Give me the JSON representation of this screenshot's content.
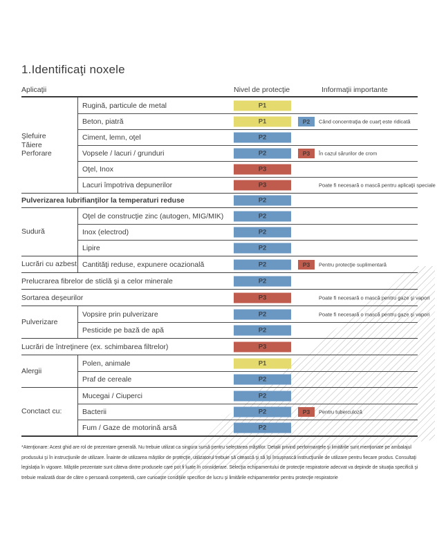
{
  "colors": {
    "p1": "#e4da6d",
    "p2": "#6b97c3",
    "p3": "#c05c4d",
    "line": "#3f3f3f",
    "hatch": "#d9d9d9"
  },
  "page": {
    "title": "1.Identificaţi noxele"
  },
  "table": {
    "headers": {
      "applications": "Aplicaţii",
      "protection": "Nivel de protecţie",
      "info": "Informaţii importante"
    },
    "sections": [
      {
        "label_lines": [
          "Şlefuire",
          "Tăiere",
          "Perforare"
        ],
        "rows": [
          {
            "label": "Rugină, particule de metal",
            "level": "P1"
          },
          {
            "label": "Beton, piatră",
            "level": "P1",
            "badge": "P2",
            "info": "Când concentraţia de cuarţ este ridicată"
          },
          {
            "label": "Ciment, lemn, oţel",
            "level": "P2"
          },
          {
            "label": "Vopsele / lacuri / grunduri",
            "level": "P2",
            "badge": "P3",
            "info": "În cazul sărurilor de crom"
          },
          {
            "label": "Oţel, Inox",
            "level": "P3"
          },
          {
            "label": "Lacuri împotriva depunerilor",
            "level": "P3",
            "info": "Poate fi necesară o mască pentru aplicaţii speciale"
          }
        ]
      },
      {
        "rows": [
          {
            "label": "Pulverizarea lubrifianţilor la temperaturi reduse",
            "level": "P2"
          }
        ]
      },
      {
        "label_lines": [
          "Sudură"
        ],
        "rows": [
          {
            "label": "Oţel de construcţie zinc (autogen, MIG/MIK)",
            "level": "P2"
          },
          {
            "label": "Inox (electrod)",
            "level": "P2"
          },
          {
            "label": "Lipire",
            "level": "P2"
          }
        ]
      },
      {
        "label_lines": [
          "Lucrări cu azbest"
        ],
        "rows": [
          {
            "label": "Cantităţi reduse, expunere ocazională",
            "level": "P2",
            "badge": "P3",
            "info": "Pentru protecţie suplimentară"
          }
        ]
      },
      {
        "rows": [
          {
            "label": "Prelucrarea fibrelor de sticlă şi a celor minerale",
            "level": "P2"
          }
        ]
      },
      {
        "rows": [
          {
            "label": "Sortarea deşeurilor",
            "level": "P3",
            "info": "Poate fi necesară o mască pentru gaze şi vapori"
          }
        ]
      },
      {
        "label_lines": [
          "Pulverizare"
        ],
        "rows": [
          {
            "label": "Vopsire prin pulverizare",
            "level": "P2",
            "info": "Poate fi necesară o mască pentru gaze şi vapori"
          },
          {
            "label": "Pesticide pe bază de apă",
            "level": "P2"
          }
        ]
      },
      {
        "rows": [
          {
            "label": "Lucrări de întreţinere (ex. schimbarea filtrelor)",
            "level": "P3"
          }
        ]
      },
      {
        "label_lines": [
          "Alergii"
        ],
        "rows": [
          {
            "label": "Polen, animale",
            "level": "P1"
          },
          {
            "label": "Praf de cereale",
            "level": "P2"
          }
        ]
      },
      {
        "label_lines": [
          "Conctact cu:"
        ],
        "rows": [
          {
            "label": "Mucegai / Ciuperci",
            "level": "P2"
          },
          {
            "label": "Bacterii",
            "level": "P2",
            "badge": "P3",
            "info": "Pentru tuberculoză"
          },
          {
            "label": "Fum / Gaze de motorină arsă",
            "level": "P2"
          }
        ]
      }
    ]
  },
  "footnote": "*Atenţionare: Acest ghid are rol de prezentare generală. Nu trebuie utilizat ca singura sursă pentru selectarea măştilor. Detalii privind performanţele şi limitările sunt menţionate pe ambalajul produsului şi în instrucţiunile de utilizare. Înainte de utilizarea măştilor de protecţie, utilizatorul trebuie să citească şi să îşi însuşească instrucţiunile de utilizare pentru fiecare produs. Consultaţi legislaţia în vigoare. Măştile prezentate sunt câteva dintre produsele care pot fi luate în considerare. Selecţia echipamentului de protecţie respiratorie adecvat va depinde de situaţia specifică şi trebuie realizată doar de către o persoană competentă, care cunoaşte condiţiile specifice de lucru şi limitările echipamentelor pentru protecţie respiratorie"
}
